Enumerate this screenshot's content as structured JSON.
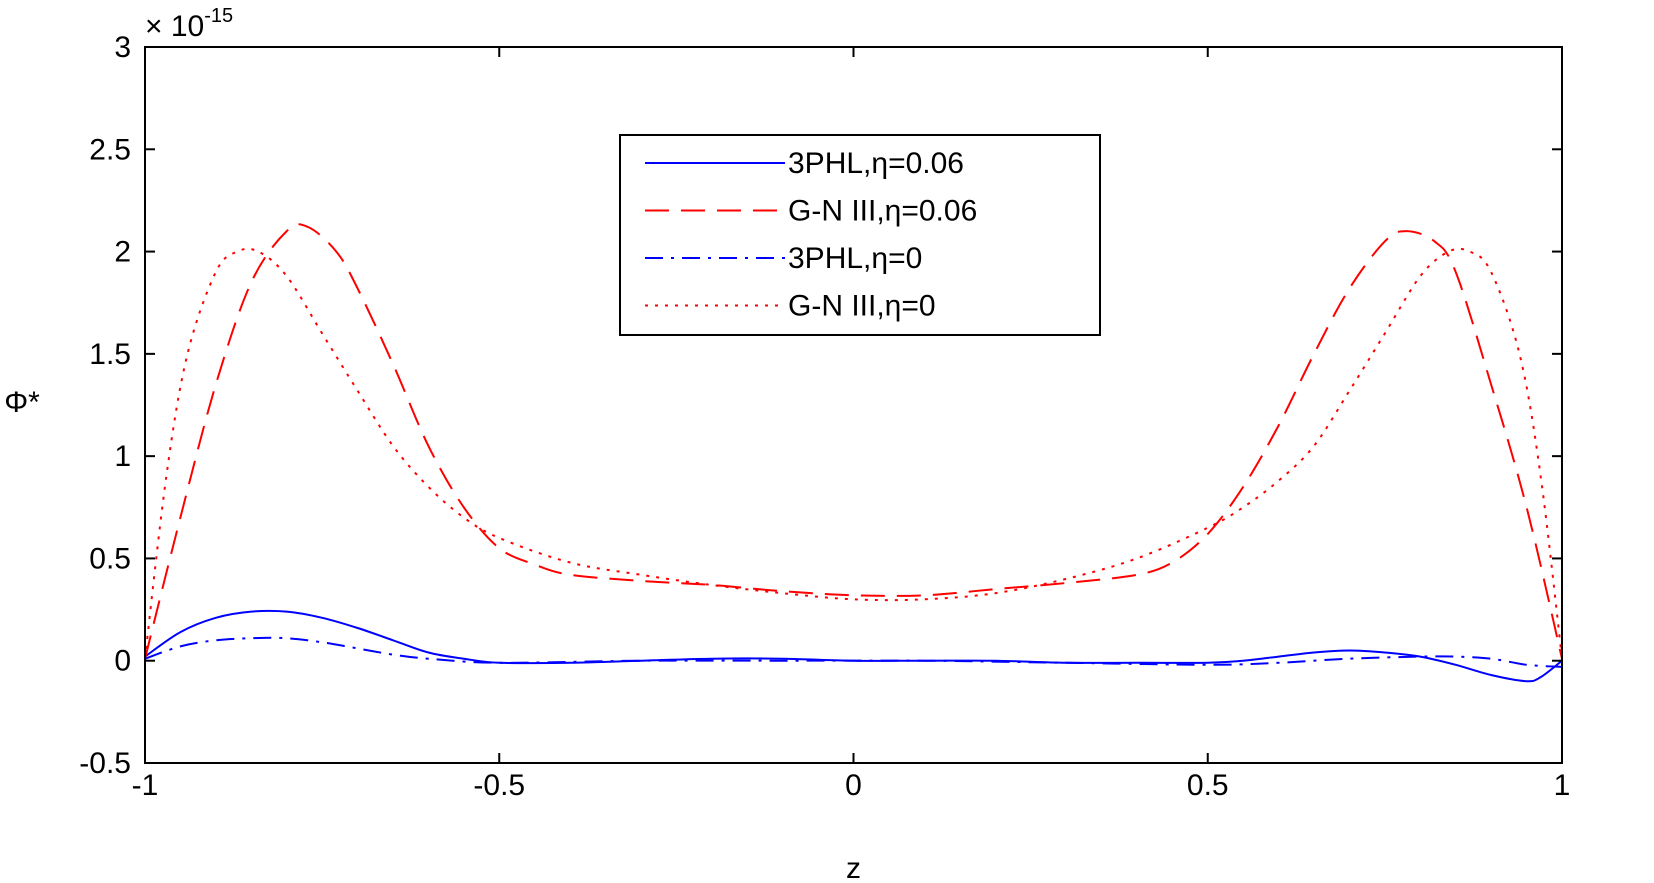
{
  "chart_data": {
    "type": "line",
    "xlabel": "z",
    "ylabel": "Φ*",
    "exponent_label": "× 10",
    "exponent_power": "-15",
    "xlim": [
      -1,
      1
    ],
    "ylim": [
      -0.5,
      3
    ],
    "xticks": [
      -1,
      -0.5,
      0,
      0.5,
      1
    ],
    "xtick_labels": [
      "-1",
      "-0.5",
      "0",
      "0.5",
      "1"
    ],
    "yticks": [
      -0.5,
      0,
      0.5,
      1,
      1.5,
      2,
      2.5,
      3
    ],
    "ytick_labels": [
      "-0.5",
      "0",
      "0.5",
      "1",
      "1.5",
      "2",
      "2.5",
      "3"
    ],
    "legend_position": "top-center",
    "series": [
      {
        "name": "3PHL,η=0.06",
        "color": "#0000ff",
        "style": "solid",
        "x": [
          -1,
          -0.95,
          -0.9,
          -0.85,
          -0.8,
          -0.75,
          -0.7,
          -0.65,
          -0.6,
          -0.55,
          -0.5,
          -0.4,
          -0.3,
          -0.2,
          -0.1,
          0,
          0.1,
          0.2,
          0.3,
          0.4,
          0.5,
          0.55,
          0.6,
          0.65,
          0.7,
          0.75,
          0.8,
          0.85,
          0.9,
          0.95,
          0.97,
          1
        ],
        "y": [
          0.02,
          0.14,
          0.21,
          0.24,
          0.24,
          0.21,
          0.16,
          0.1,
          0.04,
          0.01,
          -0.01,
          -0.01,
          0,
          0.01,
          0.01,
          0,
          0,
          0,
          -0.01,
          -0.01,
          -0.01,
          0,
          0.02,
          0.04,
          0.05,
          0.04,
          0.02,
          -0.02,
          -0.07,
          -0.1,
          -0.08,
          0
        ]
      },
      {
        "name": "G-N III,η=0.06",
        "color": "#ff0000",
        "style": "dashed",
        "x": [
          -1,
          -0.95,
          -0.9,
          -0.85,
          -0.8,
          -0.77,
          -0.73,
          -0.7,
          -0.65,
          -0.6,
          -0.55,
          -0.5,
          -0.45,
          -0.4,
          -0.3,
          -0.2,
          -0.1,
          0,
          0.1,
          0.2,
          0.3,
          0.4,
          0.45,
          0.5,
          0.55,
          0.6,
          0.65,
          0.7,
          0.75,
          0.78,
          0.82,
          0.85,
          0.9,
          0.95,
          1
        ],
        "y": [
          0.01,
          0.7,
          1.35,
          1.85,
          2.1,
          2.12,
          2.0,
          1.82,
          1.45,
          1.05,
          0.75,
          0.55,
          0.47,
          0.42,
          0.39,
          0.37,
          0.34,
          0.32,
          0.32,
          0.35,
          0.38,
          0.42,
          0.48,
          0.62,
          0.85,
          1.15,
          1.5,
          1.82,
          2.05,
          2.1,
          2.05,
          1.9,
          1.35,
          0.75,
          0.01
        ]
      },
      {
        "name": "3PHL,η=0",
        "color": "#0000ff",
        "style": "dashdot",
        "x": [
          -1,
          -0.95,
          -0.9,
          -0.85,
          -0.8,
          -0.75,
          -0.7,
          -0.65,
          -0.6,
          -0.5,
          -0.3,
          -0.1,
          0.1,
          0.3,
          0.5,
          0.6,
          0.7,
          0.8,
          0.85,
          0.9,
          0.95,
          1
        ],
        "y": [
          0.01,
          0.07,
          0.1,
          0.11,
          0.11,
          0.09,
          0.06,
          0.03,
          0.01,
          -0.01,
          0,
          0,
          0,
          -0.01,
          -0.02,
          -0.01,
          0.01,
          0.02,
          0.02,
          0.01,
          -0.02,
          -0.03
        ]
      },
      {
        "name": "G-N III,η=0",
        "color": "#ff0000",
        "style": "dotted",
        "x": [
          -1,
          -0.97,
          -0.94,
          -0.9,
          -0.87,
          -0.84,
          -0.8,
          -0.75,
          -0.7,
          -0.65,
          -0.6,
          -0.55,
          -0.5,
          -0.4,
          -0.3,
          -0.2,
          -0.1,
          0,
          0.1,
          0.2,
          0.3,
          0.4,
          0.5,
          0.55,
          0.6,
          0.65,
          0.7,
          0.75,
          0.8,
          0.84,
          0.87,
          0.9,
          0.94,
          0.97,
          1
        ],
        "y": [
          0.01,
          0.9,
          1.5,
          1.9,
          2.0,
          2.0,
          1.88,
          1.6,
          1.32,
          1.05,
          0.85,
          0.7,
          0.6,
          0.48,
          0.42,
          0.37,
          0.33,
          0.3,
          0.3,
          0.33,
          0.4,
          0.5,
          0.65,
          0.75,
          0.88,
          1.05,
          1.32,
          1.6,
          1.88,
          2.0,
          2.0,
          1.9,
          1.5,
          0.9,
          0.01
        ]
      }
    ]
  }
}
